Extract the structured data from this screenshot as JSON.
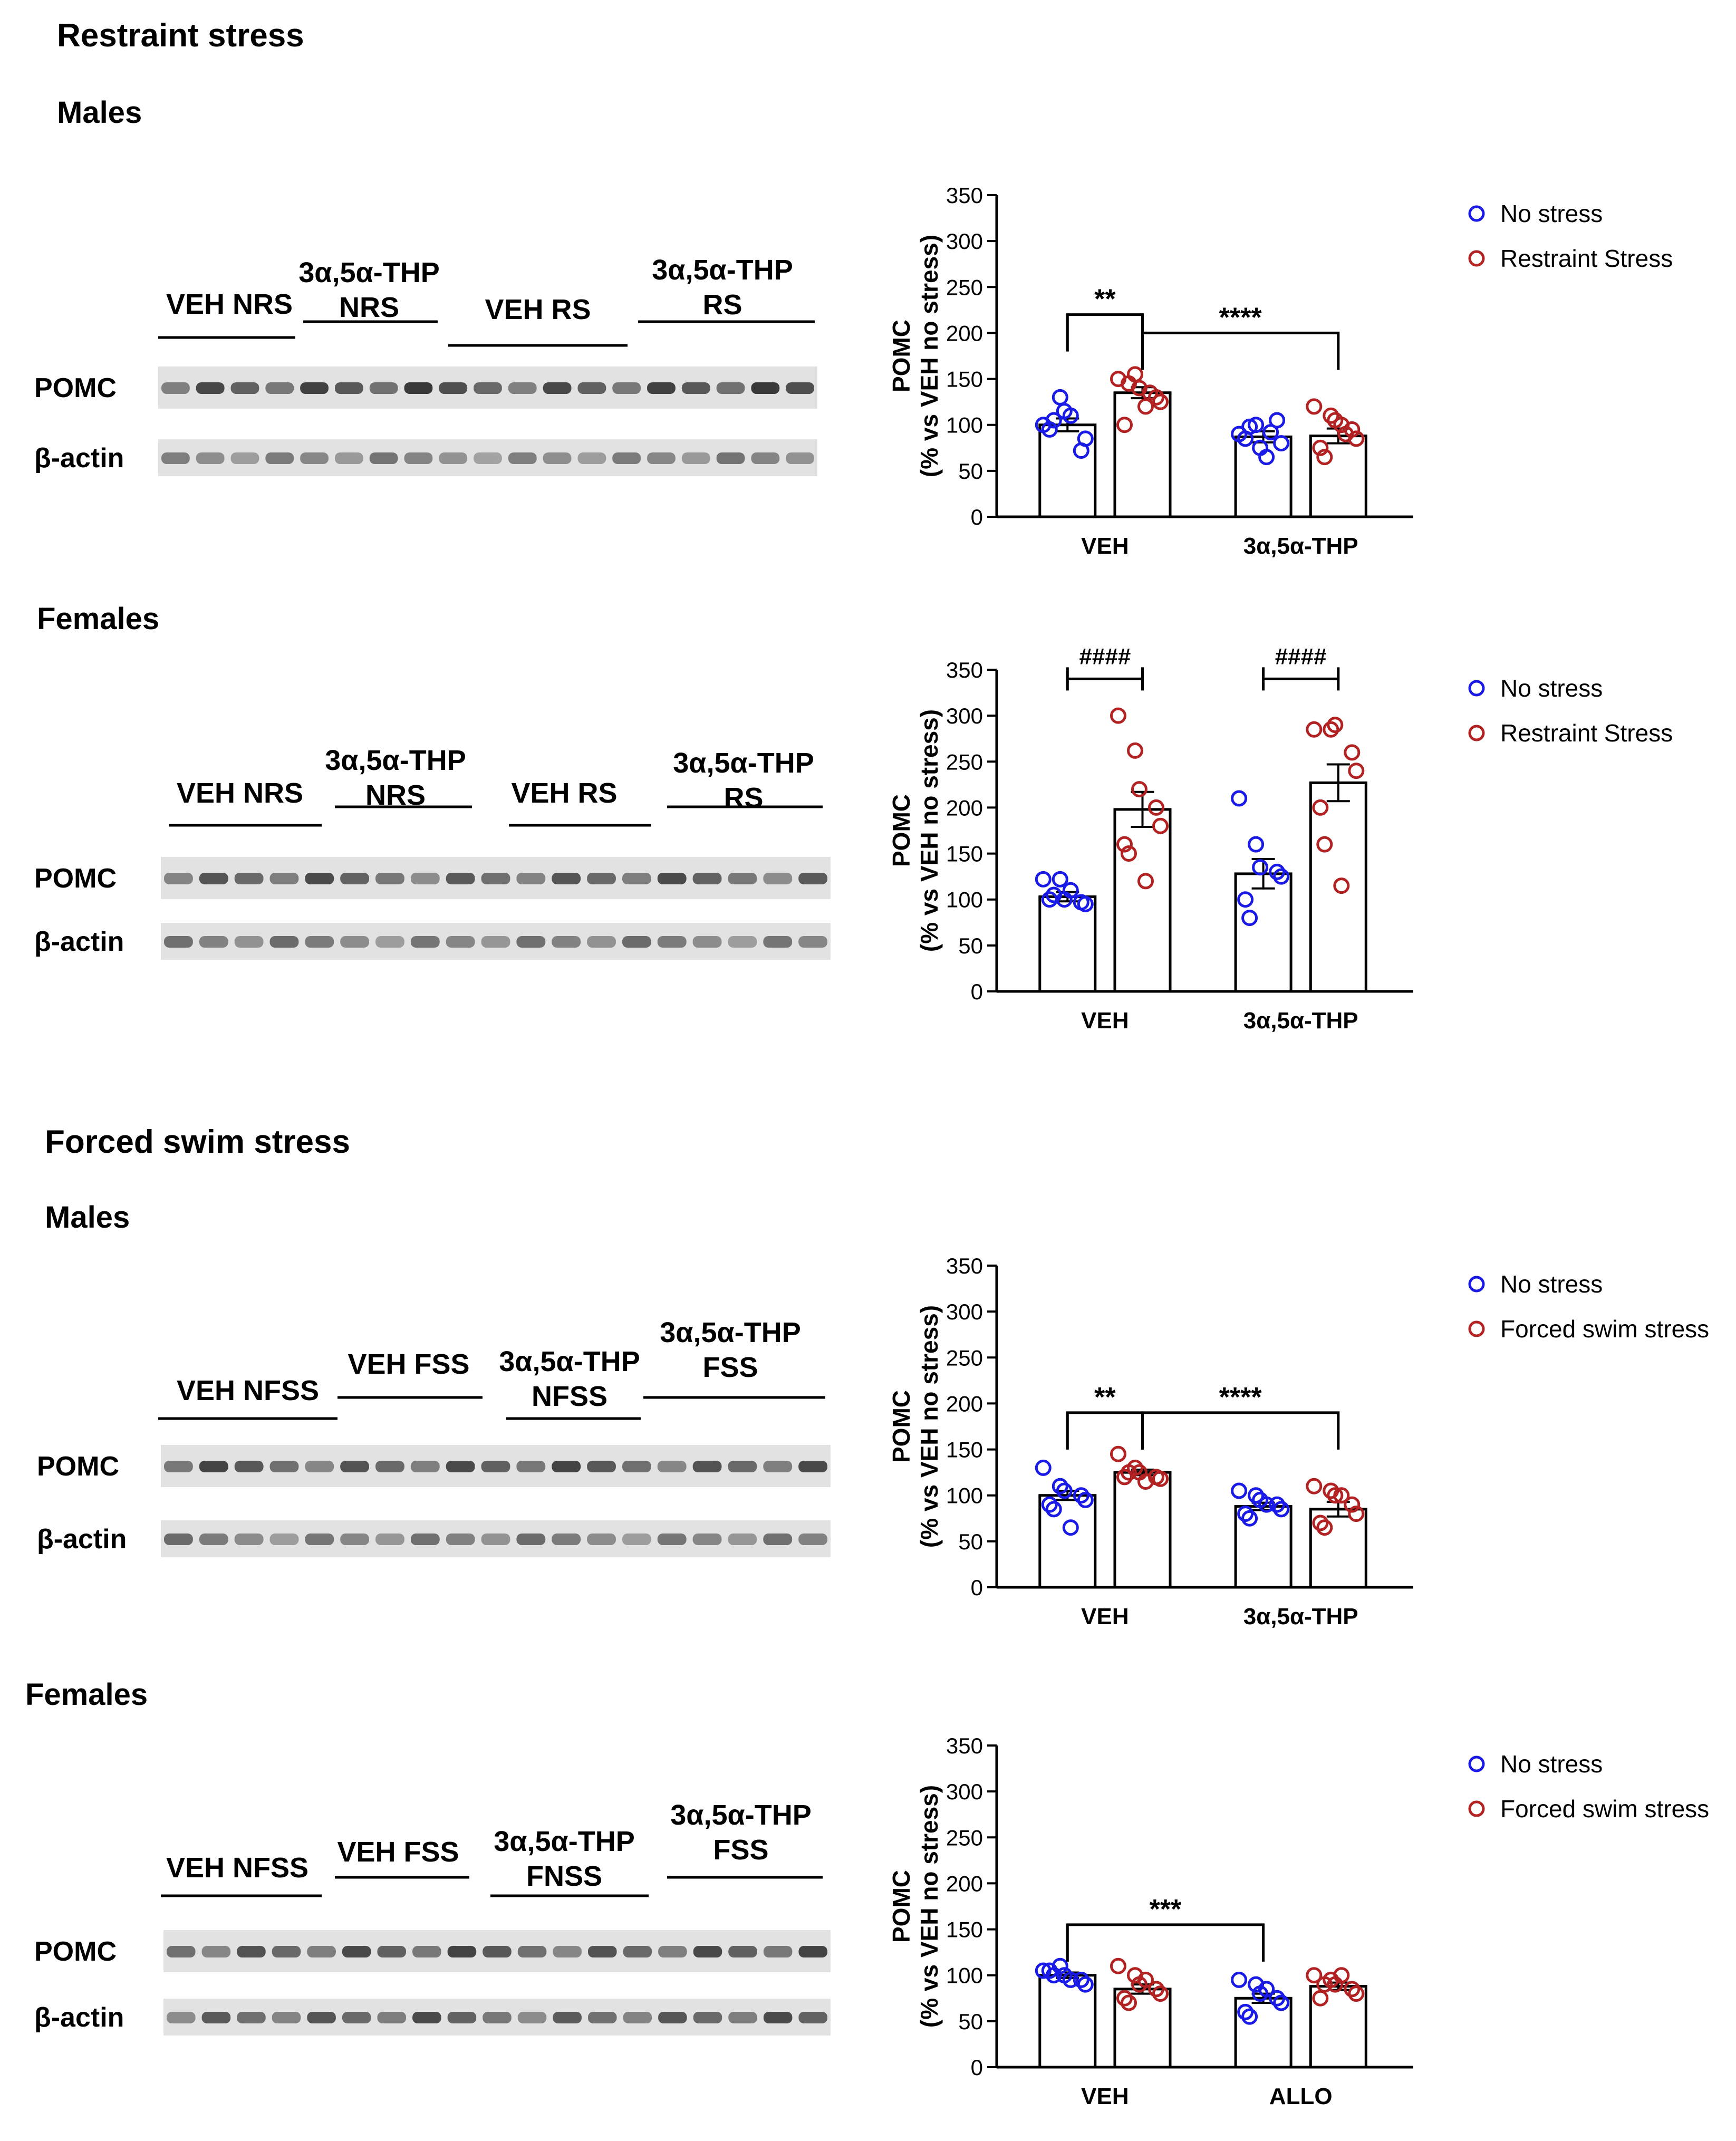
{
  "sections": [
    {
      "title": "Restraint stress"
    },
    {
      "title": "Forced swim stress"
    }
  ],
  "panels": [
    {
      "subtitle": "Males",
      "blot": {
        "groups": [
          [
            "VEH NRS"
          ],
          [
            "3α,5α-THP",
            "NRS"
          ],
          [
            "VEH RS"
          ],
          [
            "3α,5α-THP",
            "RS"
          ]
        ],
        "rows": [
          "POMC",
          "β-actin"
        ]
      },
      "legend": [
        {
          "label": "No stress",
          "color": "#1a1ae6"
        },
        {
          "label": "Restraint Stress",
          "color": "#b22222"
        }
      ]
    },
    {
      "subtitle": "Females",
      "blot": {
        "groups": [
          [
            "VEH NRS"
          ],
          [
            "3α,5α-THP",
            "NRS"
          ],
          [
            "VEH RS"
          ],
          [
            "3α,5α-THP",
            "RS"
          ]
        ],
        "rows": [
          "POMC",
          "β-actin"
        ]
      },
      "legend": [
        {
          "label": "No stress",
          "color": "#1a1ae6"
        },
        {
          "label": "Restraint Stress",
          "color": "#b22222"
        }
      ]
    },
    {
      "subtitle": "Males",
      "blot": {
        "groups": [
          [
            "VEH NFSS"
          ],
          [
            "VEH FSS"
          ],
          [
            "3α,5α-THP",
            "NFSS"
          ],
          [
            "3α,5α-THP",
            "FSS"
          ]
        ],
        "rows": [
          "POMC",
          "β-actin"
        ]
      },
      "legend": [
        {
          "label": "No stress",
          "color": "#1a1ae6"
        },
        {
          "label": "Forced swim stress",
          "color": "#b22222"
        }
      ]
    },
    {
      "subtitle": "Females",
      "blot": {
        "groups": [
          [
            "VEH NFSS"
          ],
          [
            "VEH FSS"
          ],
          [
            "3α,5α-THP",
            "FNSS"
          ],
          [
            "3α,5α-THP",
            "FSS"
          ]
        ],
        "rows": [
          "POMC",
          "β-actin"
        ]
      },
      "legend": [
        {
          "label": "No stress",
          "color": "#1a1ae6"
        },
        {
          "label": "Forced swim stress",
          "color": "#b22222"
        }
      ]
    }
  ],
  "chart_data": [
    {
      "type": "bar",
      "title": "Restraint stress – Males",
      "ylabel": [
        "POMC",
        "(% vs VEH no stress)"
      ],
      "ylim": [
        0,
        350
      ],
      "yticks": [
        0,
        50,
        100,
        150,
        200,
        250,
        300,
        350
      ],
      "categories": [
        "VEH",
        "3α,5α-THP"
      ],
      "series": [
        {
          "name": "No stress",
          "color": "#1a1ae6",
          "values": [
            100,
            87
          ],
          "sem": [
            7,
            6
          ],
          "points": [
            [
              100,
              130,
              115,
              72,
              85,
              95,
              105,
              110
            ],
            [
              90,
              100,
              75,
              105,
              80,
              85,
              98,
              65,
              92
            ]
          ]
        },
        {
          "name": "Restraint Stress",
          "color": "#b22222",
          "values": [
            135,
            88
          ],
          "sem": [
            6,
            8
          ],
          "points": [
            [
              150,
              155,
              140,
              130,
              125,
              100,
              145,
              120,
              135
            ],
            [
              120,
              110,
              105,
              95,
              85,
              75,
              65,
              100,
              90
            ]
          ]
        }
      ],
      "annotations": [
        {
          "label": "**",
          "from": [
            0,
            0
          ],
          "to": [
            0,
            1
          ],
          "y": 220
        },
        {
          "label": "****",
          "from": [
            0,
            1
          ],
          "to": [
            1,
            1
          ],
          "y": 200
        }
      ]
    },
    {
      "type": "bar",
      "title": "Restraint stress – Females",
      "ylabel": [
        "POMC",
        "(% vs VEH no stress)"
      ],
      "ylim": [
        0,
        350
      ],
      "yticks": [
        0,
        50,
        100,
        150,
        200,
        250,
        300,
        350
      ],
      "categories": [
        "VEH",
        "3α,5α-THP"
      ],
      "series": [
        {
          "name": "No stress",
          "color": "#1a1ae6",
          "values": [
            103,
            128
          ],
          "sem": [
            5,
            16
          ],
          "points": [
            [
              122,
              122,
              100,
              97,
              95,
              100,
              105,
              110
            ],
            [
              210,
              160,
              135,
              130,
              125,
              100,
              80
            ]
          ]
        },
        {
          "name": "Restraint Stress",
          "color": "#b22222",
          "values": [
            198,
            227
          ],
          "sem": [
            19,
            20
          ],
          "points": [
            [
              300,
              262,
              220,
              200,
              180,
              160,
              150,
              120
            ],
            [
              285,
              285,
              290,
              260,
              240,
              200,
              160,
              115
            ]
          ]
        }
      ],
      "annotations": [
        {
          "label": "####",
          "from": [
            0,
            0
          ],
          "to": [
            0,
            1
          ],
          "y": 340
        },
        {
          "label": "####",
          "from": [
            1,
            0
          ],
          "to": [
            1,
            1
          ],
          "y": 340
        }
      ]
    },
    {
      "type": "bar",
      "title": "Forced swim stress – Males",
      "ylabel": [
        "POMC",
        "(% vs VEH no stress)"
      ],
      "ylim": [
        0,
        350
      ],
      "yticks": [
        0,
        50,
        100,
        150,
        200,
        250,
        300,
        350
      ],
      "categories": [
        "VEH",
        "3α,5α-THP"
      ],
      "series": [
        {
          "name": "No stress",
          "color": "#1a1ae6",
          "values": [
            100,
            88
          ],
          "sem": [
            5,
            4
          ],
          "points": [
            [
              130,
              110,
              105,
              100,
              95,
              90,
              85,
              65
            ],
            [
              105,
              100,
              95,
              90,
              85,
              80,
              75,
              90
            ]
          ]
        },
        {
          "name": "Forced swim stress",
          "color": "#b22222",
          "values": [
            125,
            85
          ],
          "sem": [
            3,
            8
          ],
          "points": [
            [
              145,
              130,
              125,
              120,
              118,
              120,
              125,
              115
            ],
            [
              110,
              105,
              100,
              90,
              80,
              70,
              65,
              100
            ]
          ]
        }
      ],
      "annotations": [
        {
          "label": "**",
          "from": [
            0,
            0
          ],
          "to": [
            0,
            1
          ],
          "y": 190
        },
        {
          "label": "****",
          "from": [
            0,
            1
          ],
          "to": [
            1,
            1
          ],
          "y": 190
        }
      ]
    },
    {
      "type": "bar",
      "title": "Forced swim stress – Females",
      "ylabel": [
        "POMC",
        "(% vs VEH no stress)"
      ],
      "ylim": [
        0,
        350
      ],
      "yticks": [
        0,
        50,
        100,
        150,
        200,
        250,
        300,
        350
      ],
      "categories": [
        "VEH",
        "ALLO"
      ],
      "series": [
        {
          "name": "No stress",
          "color": "#1a1ae6",
          "values": [
            100,
            75
          ],
          "sem": [
            3,
            5
          ],
          "points": [
            [
              105,
              110,
              100,
              95,
              90,
              105,
              100,
              95
            ],
            [
              95,
              90,
              80,
              75,
              70,
              60,
              55,
              85
            ]
          ]
        },
        {
          "name": "Forced swim stress",
          "color": "#b22222",
          "values": [
            85,
            88
          ],
          "sem": [
            5,
            4
          ],
          "points": [
            [
              110,
              100,
              90,
              85,
              80,
              75,
              70,
              95
            ],
            [
              100,
              95,
              90,
              85,
              80,
              75,
              90,
              100
            ]
          ]
        }
      ],
      "annotations": [
        {
          "label": "***",
          "from": [
            0,
            0
          ],
          "to": [
            1,
            0
          ],
          "y": 155
        }
      ]
    }
  ]
}
